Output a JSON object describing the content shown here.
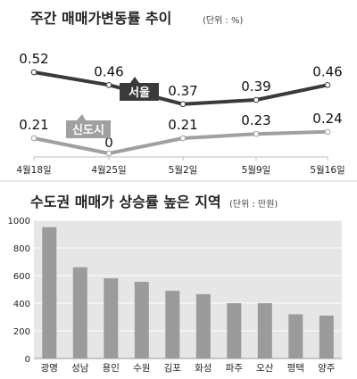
{
  "chart_data": [
    {
      "type": "line",
      "title": "주간 매매가변동률 추이",
      "unit": "(단위 : %)",
      "categories": [
        "4월18일",
        "4월25일",
        "5월2일",
        "5월9일",
        "5월16일"
      ],
      "series": [
        {
          "name": "서울",
          "values": [
            0.52,
            0.46,
            0.37,
            0.39,
            0.46
          ],
          "color": "#3a3a3a"
        },
        {
          "name": "신도시",
          "values": [
            0.21,
            0,
            0.21,
            0.23,
            0.24
          ],
          "color": "#a0a0a0"
        }
      ],
      "value_labels": {
        "seoul": [
          "0.52",
          "0.46",
          "0.37",
          "0.39",
          "0.46"
        ],
        "newtown": [
          "0.21",
          "0",
          "0.21",
          "0.23",
          "0.24"
        ]
      },
      "grid": false
    },
    {
      "type": "bar",
      "title": "수도권 매매가 상승률 높은 지역",
      "unit": "(단위 : 만원)",
      "categories": [
        "광명",
        "성남",
        "용인",
        "수원",
        "김포",
        "화성",
        "파주",
        "오산",
        "평택",
        "양주"
      ],
      "values": [
        950,
        660,
        580,
        555,
        490,
        465,
        400,
        400,
        320,
        310
      ],
      "ylim": [
        0,
        1000
      ],
      "yticks": [
        "0",
        "200",
        "400",
        "600",
        "800",
        "1000"
      ],
      "bar_color": "#9b9b9b",
      "background": "#e6e6e6",
      "grid": true
    }
  ]
}
